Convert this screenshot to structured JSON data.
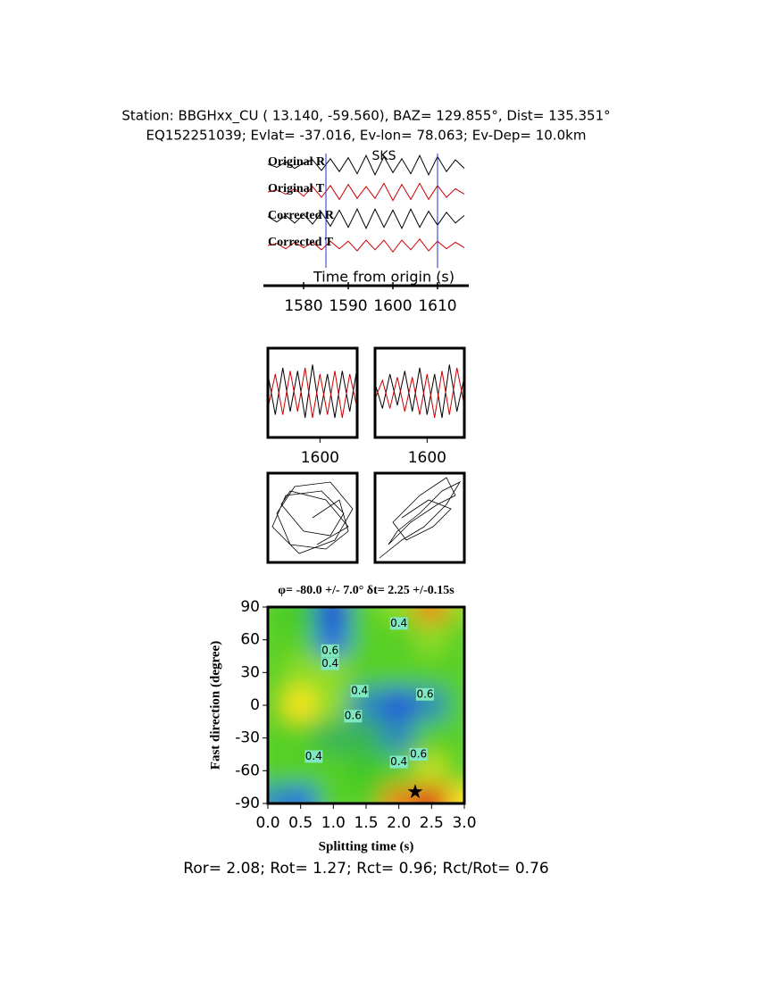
{
  "header": {
    "line1": "Station: BBGHxx_CU (  13.140,  -59.560), BAZ=  129.855°, Dist=  135.351°",
    "line2": "EQ152251039; Evlat= -37.016, Ev-lon=  78.063; Ev-Dep= 10.0km"
  },
  "chart_data": [
    {
      "type": "waveform",
      "annotation": "SKS",
      "x_label": "Time from origin (s)",
      "xlim": [
        1572,
        1616
      ],
      "xticks": [
        1580,
        1590,
        1600,
        1610
      ],
      "window": [
        1585,
        1610
      ],
      "x": [
        1572,
        1574,
        1576,
        1578,
        1580,
        1582,
        1584,
        1586,
        1588,
        1590,
        1592,
        1594,
        1596,
        1598,
        1600,
        1602,
        1604,
        1606,
        1608,
        1610,
        1612,
        1614,
        1616
      ],
      "series": [
        {
          "name": "Original R",
          "color": "#000000",
          "values": [
            0.1,
            -0.2,
            0.3,
            -0.3,
            0.2,
            0.5,
            -0.5,
            0.6,
            -0.6,
            0.7,
            -0.8,
            0.9,
            -0.9,
            0.8,
            -0.7,
            0.6,
            -0.8,
            0.9,
            -0.9,
            0.8,
            -0.6,
            0.5,
            -0.3
          ]
        },
        {
          "name": "Original T",
          "color": "#cc0000",
          "values": [
            0,
            0.2,
            -0.2,
            0.3,
            -0.4,
            0.5,
            -0.5,
            0.6,
            -0.7,
            0.7,
            -0.6,
            0.5,
            -0.6,
            0.8,
            -0.8,
            0.7,
            -0.7,
            0.8,
            -0.7,
            0.6,
            -0.5,
            0.3,
            -0.2
          ]
        },
        {
          "name": "Corrected R",
          "color": "#000000",
          "values": [
            0.2,
            -0.3,
            0.3,
            -0.4,
            0.4,
            -0.5,
            0.6,
            -0.7,
            0.8,
            -0.8,
            0.9,
            -0.9,
            0.9,
            -0.8,
            0.8,
            -0.9,
            0.9,
            -0.8,
            0.7,
            -0.6,
            0.6,
            -0.4,
            0.3
          ]
        },
        {
          "name": "Corrected T",
          "color": "#cc0000",
          "values": [
            0,
            0.2,
            -0.3,
            0.3,
            -0.2,
            0.3,
            -0.4,
            0.4,
            -0.3,
            0.4,
            -0.5,
            0.5,
            -0.4,
            0.5,
            -0.6,
            0.5,
            -0.4,
            0.6,
            -0.5,
            0.4,
            -0.3,
            0.3,
            -0.2
          ]
        }
      ]
    },
    {
      "type": "line",
      "xlim": [
        1586,
        1610
      ],
      "ylim": [
        -1,
        1
      ],
      "xticks": [
        1600
      ],
      "x": [
        1586,
        1588,
        1590,
        1592,
        1594,
        1596,
        1598,
        1600,
        1602,
        1604,
        1606,
        1608,
        1610
      ],
      "series": [
        {
          "color": "#000000",
          "values": [
            0.6,
            -0.7,
            0.8,
            -0.6,
            0.7,
            -0.8,
            0.9,
            -0.7,
            0.6,
            -0.8,
            0.7,
            -0.6,
            0.8
          ]
        },
        {
          "color": "#cc0000",
          "values": [
            -0.5,
            0.6,
            -0.7,
            0.7,
            -0.6,
            0.8,
            -0.8,
            0.6,
            -0.7,
            0.7,
            -0.8,
            0.6,
            -0.5
          ]
        }
      ]
    },
    {
      "type": "line",
      "xlim": [
        1586,
        1610
      ],
      "ylim": [
        -1,
        1
      ],
      "xticks": [
        1600
      ],
      "x": [
        1586,
        1588,
        1590,
        1592,
        1594,
        1596,
        1598,
        1600,
        1602,
        1604,
        1606,
        1608,
        1610
      ],
      "series": [
        {
          "color": "#000000",
          "values": [
            0.3,
            -0.5,
            0.6,
            -0.4,
            0.7,
            -0.6,
            0.8,
            -0.7,
            0.6,
            -0.8,
            0.9,
            -0.6,
            0.5
          ]
        },
        {
          "color": "#cc0000",
          "values": [
            -0.2,
            0.4,
            -0.5,
            0.5,
            -0.6,
            0.5,
            -0.7,
            0.6,
            -0.8,
            0.7,
            -0.7,
            0.8,
            -0.4
          ]
        }
      ]
    },
    {
      "type": "particle",
      "xlim": [
        -1,
        1
      ],
      "ylim": [
        -1,
        1
      ],
      "x": [
        0,
        0.6,
        0.8,
        0.3,
        -0.5,
        -0.8,
        -0.4,
        0.4,
        0.9,
        0.5,
        -0.3,
        -0.9,
        -0.6,
        0.2,
        0.7,
        0.4,
        -0.2,
        -0.7,
        -0.5,
        0.3,
        0.8,
        0.1
      ],
      "values": [
        0,
        0.4,
        -0.3,
        -0.7,
        -0.6,
        0.1,
        0.7,
        0.8,
        0.2,
        -0.5,
        -0.8,
        -0.2,
        0.5,
        0.6,
        0.1,
        -0.4,
        -0.3,
        0.3,
        0.6,
        0.4,
        -0.2,
        -0.6
      ]
    },
    {
      "type": "particle",
      "xlim": [
        -1,
        1
      ],
      "ylim": [
        -1,
        1
      ],
      "x": [
        -0.9,
        -0.4,
        0.1,
        0.6,
        0.9,
        0.5,
        0.0,
        -0.5,
        -0.7,
        -0.2,
        0.4,
        0.8,
        0.6,
        0.0,
        -0.6,
        -0.3,
        0.3,
        0.7,
        0.2,
        -0.4
      ],
      "values": [
        -0.9,
        -0.5,
        -0.2,
        0.3,
        0.8,
        0.6,
        0.1,
        -0.3,
        -0.6,
        -0.1,
        0.3,
        0.5,
        0.9,
        0.5,
        -0.1,
        -0.5,
        -0.2,
        0.2,
        0.4,
        0.0
      ]
    },
    {
      "type": "contour",
      "title": "φ= -80.0 +/- 7.0° δt= 2.25 +/-0.15s",
      "x_label": "Splitting time (s)",
      "y_label": "Fast direction (degree)",
      "xlim": [
        0,
        3
      ],
      "ylim": [
        -90,
        90
      ],
      "xticks": [
        {
          "value": 0,
          "label": "0.0"
        },
        0.5,
        {
          "value": 1,
          "label": "1.0"
        },
        1.5,
        {
          "value": 2,
          "label": "2.0"
        },
        2.5,
        {
          "value": 3,
          "label": "3.0"
        }
      ],
      "yticks": [
        -90,
        -60,
        -30,
        0,
        30,
        60,
        90
      ],
      "x": [
        0,
        0.5,
        1,
        1.5,
        2,
        2.5,
        3
      ],
      "y": [
        90,
        60,
        30,
        0,
        -30,
        -60,
        -90
      ],
      "z": [
        [
          0.5,
          0.45,
          0.1,
          0.5,
          0.6,
          0.9,
          0.6
        ],
        [
          0.5,
          0.5,
          0.2,
          0.5,
          0.5,
          0.6,
          0.5
        ],
        [
          0.5,
          0.6,
          0.6,
          0.5,
          0.5,
          0.5,
          0.5
        ],
        [
          0.5,
          0.8,
          0.6,
          0.3,
          0.15,
          0.3,
          0.5
        ],
        [
          0.5,
          0.5,
          0.4,
          0.4,
          0.3,
          0.5,
          0.5
        ],
        [
          0.5,
          0.5,
          0.5,
          0.45,
          0.5,
          0.7,
          0.5
        ],
        [
          0.3,
          0.2,
          0.5,
          0.5,
          0.9,
          1.0,
          0.8
        ]
      ],
      "contour_labels": [
        {
          "value": 0.6,
          "x": 0.95,
          "y": 50
        },
        {
          "value": 0.4,
          "x": 0.95,
          "y": 38
        },
        {
          "value": 0.4,
          "x": 1.4,
          "y": 13
        },
        {
          "value": 0.6,
          "x": 2.4,
          "y": 10
        },
        {
          "value": 0.6,
          "x": 1.3,
          "y": -10
        },
        {
          "value": 0.6,
          "x": 2.3,
          "y": -45
        },
        {
          "value": 0.4,
          "x": 2.0,
          "y": -52
        },
        {
          "value": 0.4,
          "x": 0.7,
          "y": -47
        },
        {
          "value": 0.4,
          "x": 2.0,
          "y": 75
        }
      ],
      "best": {
        "x": 2.25,
        "y": -80
      }
    }
  ],
  "footer": "Ror= 2.08; Rot= 1.27; Rct= 0.96; Rct/Rot= 0.76"
}
